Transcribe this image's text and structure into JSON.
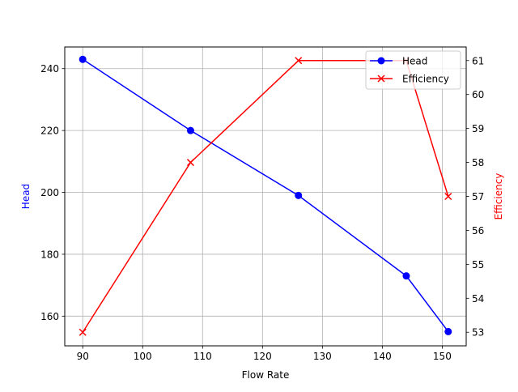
{
  "chart_data": {
    "type": "line",
    "title": "",
    "xlabel": "Flow Rate",
    "x": [
      90,
      108,
      126,
      144,
      151
    ],
    "xlim": [
      87,
      154
    ],
    "xticks": [
      90,
      100,
      110,
      120,
      130,
      140,
      150
    ],
    "grid": true,
    "legend_position": "upper right",
    "series": [
      {
        "name": "Head",
        "axis": "left",
        "color": "#0000ff",
        "marker": "o",
        "values": [
          243,
          220,
          199,
          173,
          155
        ]
      },
      {
        "name": "Efficiency",
        "axis": "right",
        "color": "#ff0000",
        "marker": "x",
        "values": [
          53,
          58,
          61,
          61,
          57
        ]
      }
    ],
    "left_axis": {
      "label": "Head",
      "label_color": "#0000ff",
      "ylim": [
        150.4,
        247
      ],
      "ticks": [
        160,
        180,
        200,
        220,
        240
      ]
    },
    "right_axis": {
      "label": "Efficiency",
      "label_color": "#ff0000",
      "ylim": [
        52.6,
        61.4
      ],
      "ticks": [
        53,
        54,
        55,
        56,
        57,
        58,
        59,
        60,
        61
      ]
    }
  }
}
